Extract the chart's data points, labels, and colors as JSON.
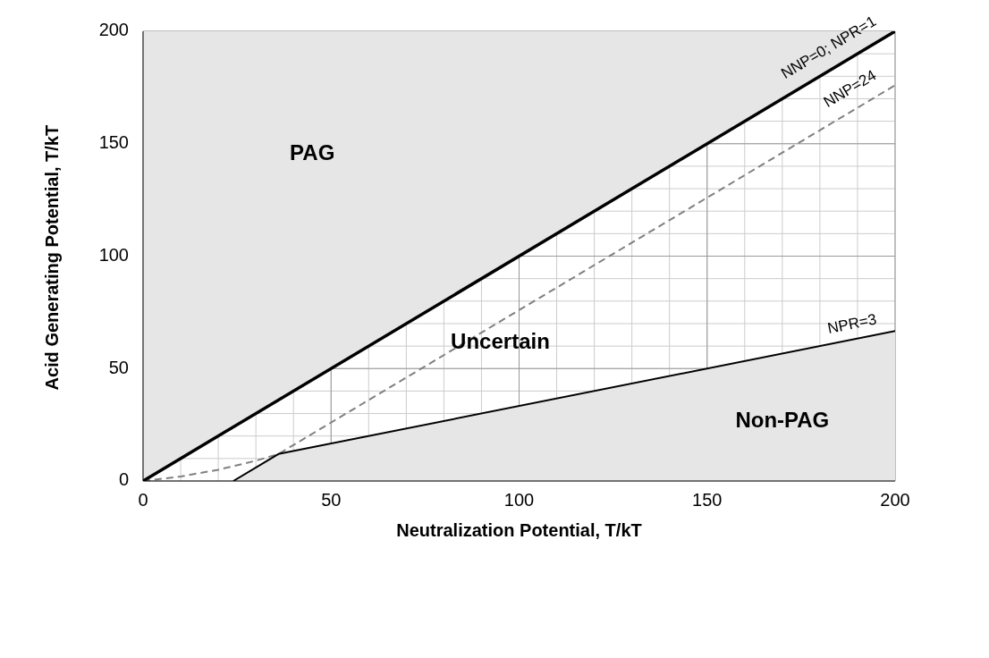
{
  "chart_data": {
    "type": "line",
    "xlabel": "Neutralization Potential, T/kT",
    "ylabel": "Acid Generating Potential, T/kT",
    "xlim": [
      0,
      200
    ],
    "ylim": [
      0,
      200
    ],
    "xticks": [
      0,
      {
        "value": 10,
        "label": null
      },
      {
        "value": 20,
        "label": null
      },
      {
        "value": 30,
        "label": null
      },
      {
        "value": 40,
        "label": null
      },
      50,
      {
        "value": 60,
        "label": null
      },
      {
        "value": 70,
        "label": null
      },
      {
        "value": 80,
        "label": null
      },
      {
        "value": 90,
        "label": null
      },
      100,
      {
        "value": 110,
        "label": null
      },
      {
        "value": 120,
        "label": null
      },
      {
        "value": 130,
        "label": null
      },
      {
        "value": 140,
        "label": null
      },
      150,
      {
        "value": 160,
        "label": null
      },
      {
        "value": 170,
        "label": null
      },
      {
        "value": 180,
        "label": null
      },
      {
        "value": 190,
        "label": null
      },
      200
    ],
    "yticks": [
      0,
      {
        "value": 10,
        "label": null
      },
      {
        "value": 20,
        "label": null
      },
      {
        "value": 30,
        "label": null
      },
      {
        "value": 40,
        "label": null
      },
      50,
      {
        "value": 60,
        "label": null
      },
      {
        "value": 70,
        "label": null
      },
      {
        "value": 80,
        "label": null
      },
      {
        "value": 90,
        "label": null
      },
      100,
      {
        "value": 110,
        "label": null
      },
      {
        "value": 120,
        "label": null
      },
      {
        "value": 130,
        "label": null
      },
      {
        "value": 140,
        "label": null
      },
      150,
      {
        "value": 160,
        "label": null
      },
      {
        "value": 170,
        "label": null
      },
      {
        "value": 180,
        "label": null
      },
      {
        "value": 190,
        "label": null
      },
      200
    ],
    "grid": true,
    "legend": false,
    "series": [
      {
        "name": "NNP=24",
        "color": "#808080",
        "line_style": "dashed",
        "x": [
          0,
          10,
          20,
          30,
          36,
          200
        ],
        "values": [
          0,
          2,
          5,
          9,
          12,
          176
        ]
      },
      {
        "name": "NPR=3",
        "color": "#000000",
        "line_style": "solid",
        "x": [
          24,
          36,
          200
        ],
        "values": [
          0,
          12,
          66.7
        ]
      },
      {
        "name": "NNP=0; NPR=1",
        "color": "#000000",
        "line_style": "solid",
        "x": [
          0,
          200
        ],
        "values": [
          0,
          200
        ]
      }
    ],
    "annotations": [
      "PAG",
      "Uncertain",
      "Non-PAG"
    ]
  }
}
